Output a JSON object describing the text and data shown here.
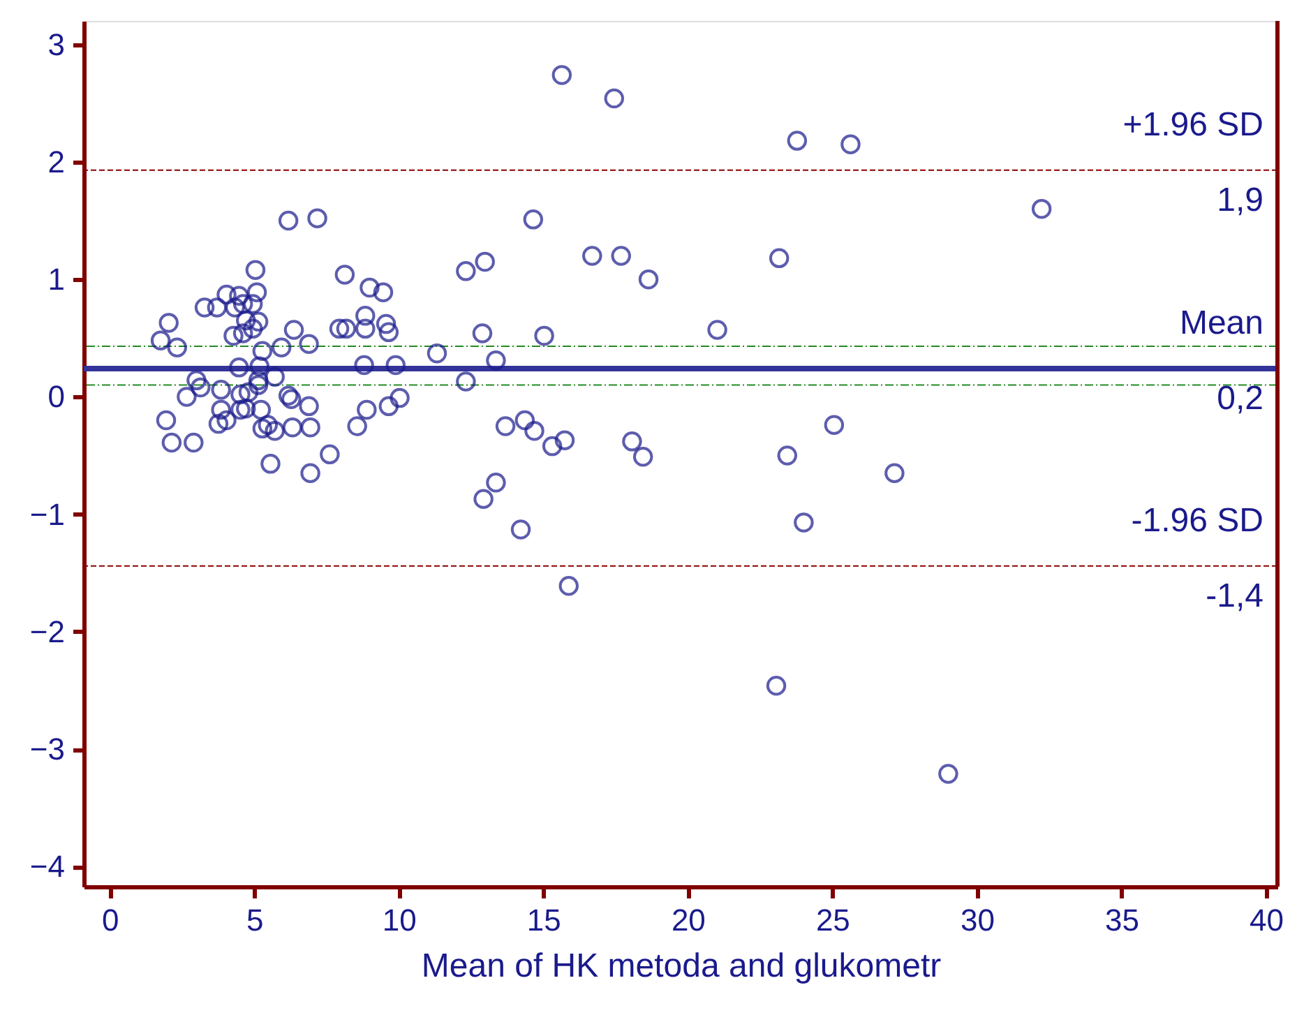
{
  "chart_data": {
    "type": "scatter",
    "xlabel": "Mean of HK metoda and glukometr",
    "xlim": [
      -0.9,
      40.4
    ],
    "ylim": [
      -4.17,
      3.2
    ],
    "xticks": [
      0,
      5,
      10,
      15,
      20,
      25,
      30,
      35,
      40
    ],
    "yticks": [
      -4,
      -3,
      -2,
      -1,
      0,
      1,
      2,
      3
    ],
    "grid": false,
    "marker": "circle",
    "series": [
      {
        "color": "#1a1a8c",
        "x": [
          6.18,
          7.18,
          5.04,
          8.13,
          4.04,
          4.47,
          5.09,
          8.99,
          9.46,
          3.28,
          3.71,
          4.33,
          4.61,
          4.95,
          2.04,
          8.84,
          9.56,
          9.65,
          7.94,
          8.18,
          8.84,
          4.71,
          5.14,
          4.95,
          4.28,
          4.61,
          6.37,
          6.89,
          1.76,
          2.33,
          5.28,
          5.94,
          11.32,
          4.47,
          5.18,
          8.8,
          9.89,
          5.71,
          5.14,
          3.0,
          3.14,
          2.66,
          3.85,
          4.52,
          4.8,
          5.14,
          6.18,
          6.28,
          6.89,
          8.89,
          9.65,
          10.03,
          1.95,
          3.85,
          4.52,
          4.71,
          5.23,
          3.76,
          4.04,
          5.28,
          5.47,
          5.71,
          6.32,
          6.94,
          8.56,
          2.14,
          2.9,
          5.56,
          7.61,
          6.94,
          15.64,
          17.45,
          23.78,
          25.63,
          14.65,
          12.32,
          12.98,
          16.69,
          17.69,
          18.64,
          23.16,
          12.89,
          15.03,
          21.02,
          13.36,
          12.32,
          13.69,
          14.36,
          14.69,
          15.31,
          15.74,
          18.07,
          18.45,
          25.06,
          23.44,
          27.15,
          13.36,
          12.93,
          14.22,
          24.01,
          15.88,
          23.06,
          32.24,
          29.01
        ],
        "values": [
          1.5,
          1.52,
          1.08,
          1.04,
          0.87,
          0.86,
          0.89,
          0.93,
          0.89,
          0.76,
          0.76,
          0.76,
          0.79,
          0.79,
          0.63,
          0.69,
          0.62,
          0.55,
          0.58,
          0.58,
          0.58,
          0.65,
          0.64,
          0.58,
          0.52,
          0.54,
          0.57,
          0.45,
          0.48,
          0.42,
          0.39,
          0.42,
          0.37,
          0.25,
          0.26,
          0.27,
          0.27,
          0.17,
          0.14,
          0.14,
          0.08,
          0.0,
          0.06,
          0.02,
          0.04,
          0.1,
          0.01,
          -0.02,
          -0.08,
          -0.11,
          -0.08,
          -0.01,
          -0.2,
          -0.11,
          -0.11,
          -0.1,
          -0.11,
          -0.23,
          -0.2,
          -0.27,
          -0.24,
          -0.29,
          -0.26,
          -0.26,
          -0.25,
          -0.39,
          -0.39,
          -0.57,
          -0.49,
          -0.65,
          2.74,
          2.54,
          2.18,
          2.15,
          1.51,
          1.07,
          1.15,
          1.2,
          1.2,
          1.0,
          1.18,
          0.54,
          0.52,
          0.57,
          0.31,
          0.13,
          -0.25,
          -0.2,
          -0.29,
          -0.42,
          -0.37,
          -0.38,
          -0.51,
          -0.24,
          -0.5,
          -0.65,
          -0.73,
          -0.87,
          -1.13,
          -1.07,
          -1.61,
          -2.46,
          1.6,
          -3.21
        ]
      }
    ],
    "ref_lines": [
      {
        "axis": "y",
        "value": 1.93,
        "label": "+1.96 SD",
        "color": "#8b0000",
        "line_style": "dashed"
      },
      {
        "axis": "y",
        "value": 0.24,
        "label": "Mean",
        "color": "#333399",
        "line_style": "solid"
      },
      {
        "axis": "y",
        "value": -1.44,
        "label": "-1.96 SD",
        "color": "#8b0000",
        "line_style": "dashed"
      },
      {
        "axis": "y",
        "value": 0.43,
        "label": null,
        "color": "#228b22",
        "line_style": "dotted"
      },
      {
        "axis": "y",
        "value": 0.1,
        "label": null,
        "color": "#228b22",
        "line_style": "dotted"
      }
    ],
    "annotations": [
      {
        "text": "1,9",
        "y": 1.93
      },
      {
        "text": "0,2",
        "y": 0.24
      },
      {
        "text": "-1,4",
        "y": -1.44
      }
    ]
  }
}
